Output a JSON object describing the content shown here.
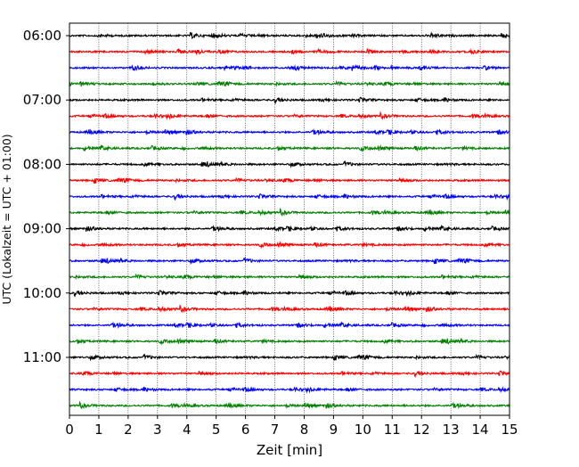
{
  "chart_data": {
    "type": "line",
    "subtype": "helicorder",
    "title": "",
    "xlabel": "Zeit  [min]",
    "ylabel": "UTC (Lokalzeit = UTC + 01:00)",
    "xlim": [
      0,
      15
    ],
    "x_ticks": [
      "0",
      "1",
      "2",
      "3",
      "4",
      "5",
      "6",
      "7",
      "8",
      "9",
      "10",
      "11",
      "12",
      "13",
      "14",
      "15"
    ],
    "y_tick_labels": [
      "06:00",
      "07:00",
      "08:00",
      "09:00",
      "10:00",
      "11:00"
    ],
    "y_tick_rows": [
      0,
      4,
      8,
      12,
      16,
      20
    ],
    "rows": 24,
    "row_interval_minutes": 15,
    "start_time": "06:00",
    "trace_colors": [
      "#000000",
      "#ff0000",
      "#0000ff",
      "#007f00"
    ],
    "grid": "vertical dotted lines at each minute"
  }
}
